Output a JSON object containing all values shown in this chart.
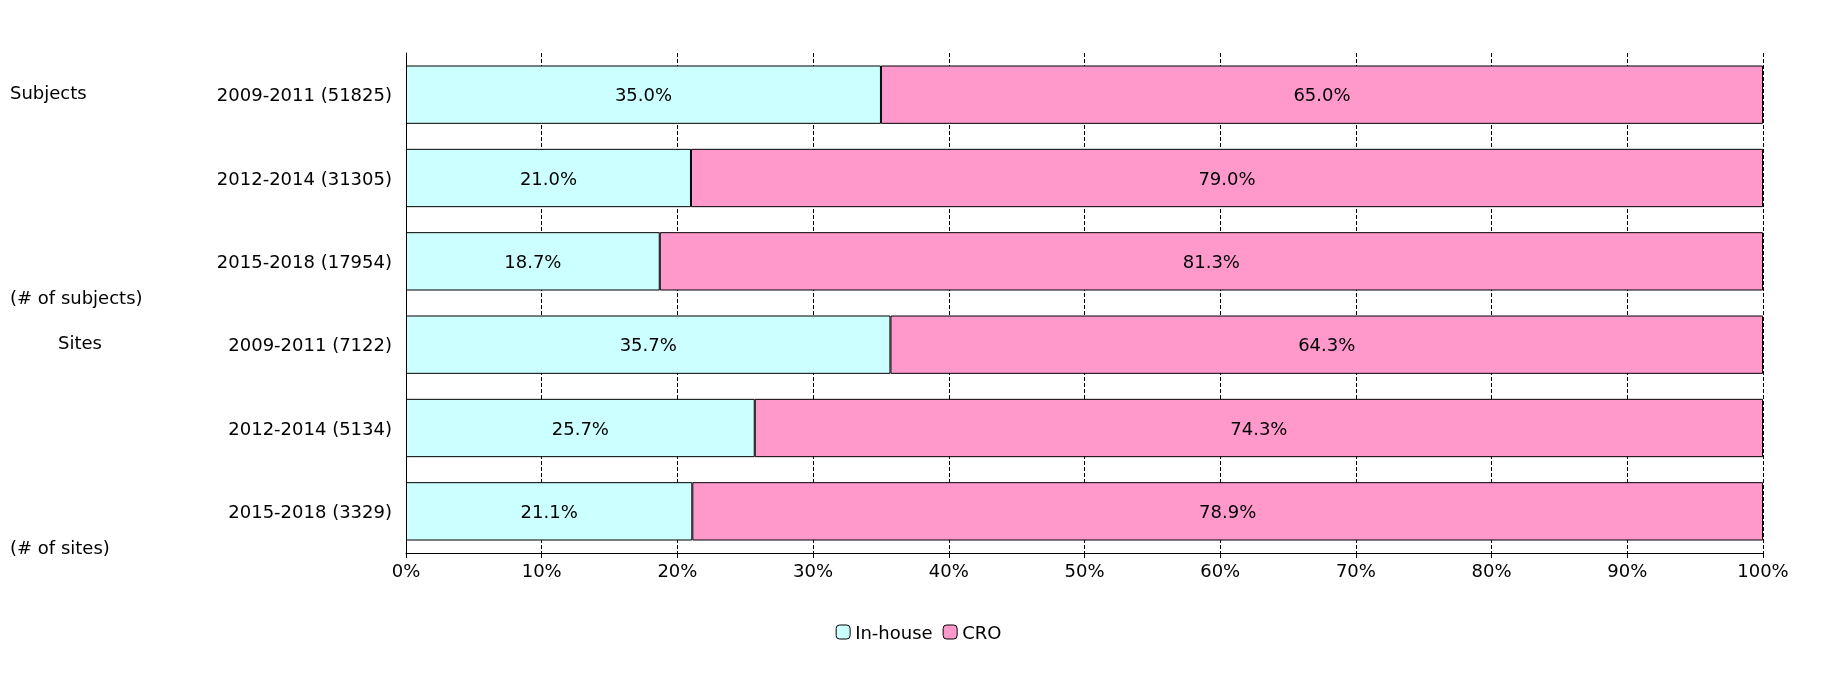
{
  "chart_data": {
    "type": "bar",
    "orientation": "horizontal",
    "stacked": true,
    "categories": [
      "2009-2011 (51825)",
      "2012-2014 (31305)",
      "2015-2018 (17954)",
      "2009-2011 (7122)",
      "2012-2014 (5134)",
      "2015-2018 (3329)"
    ],
    "series": [
      {
        "name": "In-house",
        "color": "#ccffff",
        "values": [
          35.0,
          21.0,
          18.7,
          35.7,
          25.7,
          21.1
        ],
        "value_labels": [
          "35.0%",
          "21.0%",
          "18.7%",
          "35.7%",
          "25.7%",
          "21.1%"
        ]
      },
      {
        "name": "CRO",
        "color": "#ff99cc",
        "values": [
          65.0,
          79.0,
          81.3,
          64.3,
          74.3,
          78.9
        ],
        "value_labels": [
          "65.0%",
          "79.0%",
          "81.3%",
          "64.3%",
          "74.3%",
          "78.9%"
        ]
      }
    ],
    "xlim": [
      0,
      100
    ],
    "xticks": [
      {
        "value": 0,
        "label": "0%"
      },
      {
        "value": 10,
        "label": "10%"
      },
      {
        "value": 20,
        "label": "20%"
      },
      {
        "value": 30,
        "label": "30%"
      },
      {
        "value": 40,
        "label": "40%"
      },
      {
        "value": 50,
        "label": "50%"
      },
      {
        "value": 60,
        "label": "60%"
      },
      {
        "value": 70,
        "label": "70%"
      },
      {
        "value": 80,
        "label": "80%"
      },
      {
        "value": 90,
        "label": "90%"
      },
      {
        "value": 100,
        "label": "100%"
      }
    ],
    "grid": "x",
    "legend": "bottom",
    "annotations": [
      "Subjects",
      "(# of subjects)",
      "Sites",
      "(# of sites)"
    ]
  }
}
